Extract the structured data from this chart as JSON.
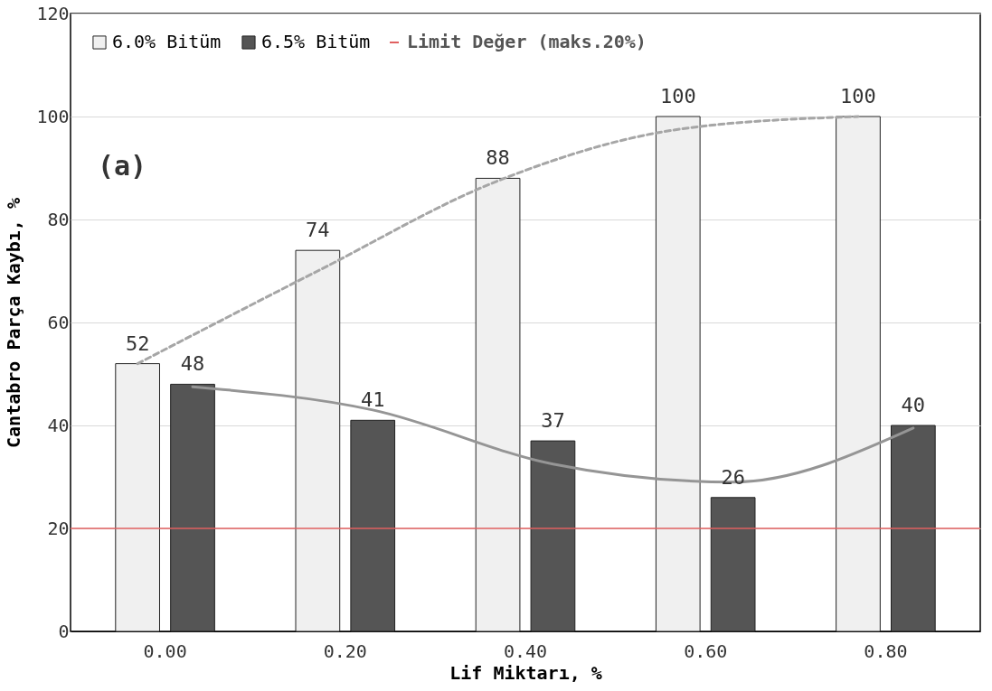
{
  "chart_data": {
    "type": "bar",
    "xlabel": "Lif Miktarı, %",
    "ylabel": "Cantabro Parça Kaybı, %",
    "categories": [
      "0.00",
      "0.20",
      "0.40",
      "0.60",
      "0.80"
    ],
    "series": [
      {
        "name": "6.0% Bitüm",
        "color": "#f0f0f0",
        "values": [
          52,
          74,
          88,
          100,
          100
        ],
        "value_labels": [
          "52",
          "74",
          "88",
          "100",
          "100"
        ]
      },
      {
        "name": "6.5% Bitüm",
        "color": "#555555",
        "values": [
          48,
          41,
          37,
          26,
          40
        ],
        "value_labels": [
          "48",
          "41",
          "37",
          "26",
          "40"
        ]
      },
      {
        "type": "line",
        "color": "#a6a6a6",
        "line_style": "dashed",
        "x": [
          "0.00",
          "0.20",
          "0.40",
          "0.60",
          "0.80"
        ],
        "values": [
          52,
          70,
          87.5,
          97.5,
          100
        ]
      },
      {
        "type": "line",
        "color": "#959595",
        "line_style": "solid",
        "x": [
          "0.00",
          "0.20",
          "0.40",
          "0.60",
          "0.80"
        ],
        "values": [
          47.5,
          43,
          32.5,
          29,
          39.5
        ]
      }
    ],
    "ylim": [
      0,
      120
    ],
    "yticks": [
      0,
      20,
      40,
      60,
      80,
      100,
      120
    ],
    "grid": "y",
    "legend": "top left",
    "ref_lines": [
      {
        "axis": "y",
        "value": 20,
        "label": "Limit Değer (maks.20%)",
        "color": "#e06060"
      }
    ],
    "annotations": [
      "(a)"
    ]
  }
}
